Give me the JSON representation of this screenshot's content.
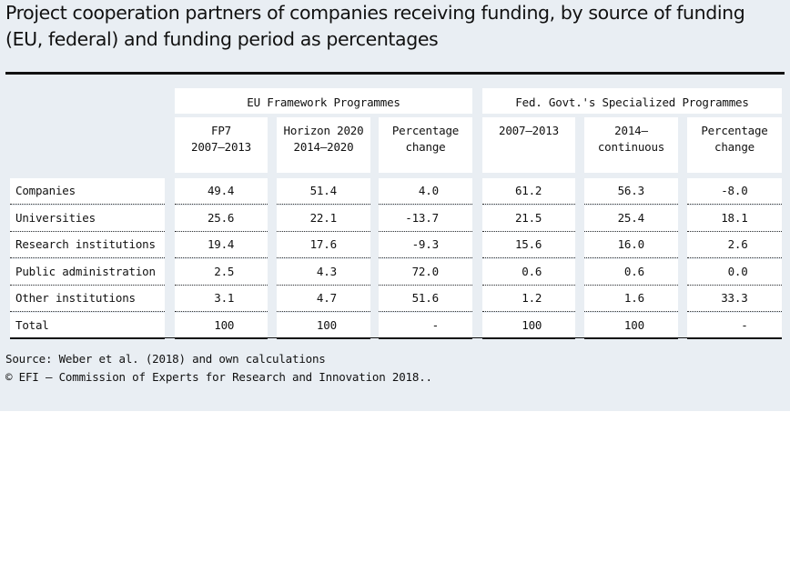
{
  "title": "Project cooperation partners of companies receiving funding, by source of funding (EU, federal) and funding period as percentages",
  "groups": {
    "eu": "EU Framework Programmes",
    "fed": "Fed. Govt.'s Specialized Programmes"
  },
  "columns": [
    {
      "line1": "FP7",
      "line2": "2007–2013"
    },
    {
      "line1": "Horizon 2020",
      "line2": "2014–2020"
    },
    {
      "line1": "Percentage",
      "line2": "change"
    },
    {
      "line1": "2007–2013",
      "line2": ""
    },
    {
      "line1": "2014–",
      "line2": "continuous"
    },
    {
      "line1": "Percentage",
      "line2": "change"
    }
  ],
  "rows": [
    {
      "label": "Companies",
      "values": [
        "49.4",
        "51.4",
        "4.0",
        "61.2",
        "56.3",
        "-8.0"
      ]
    },
    {
      "label": "Universities",
      "values": [
        "25.6",
        "22.1",
        "-13.7",
        "21.5",
        "25.4",
        "18.1"
      ]
    },
    {
      "label": "Research institutions",
      "values": [
        "19.4",
        "17.6",
        "-9.3",
        "15.6",
        "16.0",
        "2.6"
      ]
    },
    {
      "label": "Public administration",
      "values": [
        "2.5",
        "4.3",
        "72.0",
        "0.6",
        "0.6",
        "0.0"
      ]
    },
    {
      "label": "Other institutions",
      "values": [
        "3.1",
        "4.7",
        "51.6",
        "1.2",
        "1.6",
        "33.3"
      ]
    },
    {
      "label": "Total",
      "values": [
        "100",
        "100",
        "-",
        "100",
        "100",
        "-"
      ]
    }
  ],
  "source": "Source: Weber et al. (2018) and own calculations",
  "copyright": "© EFI – Commission of Experts for Research and Innovation 2018.."
}
